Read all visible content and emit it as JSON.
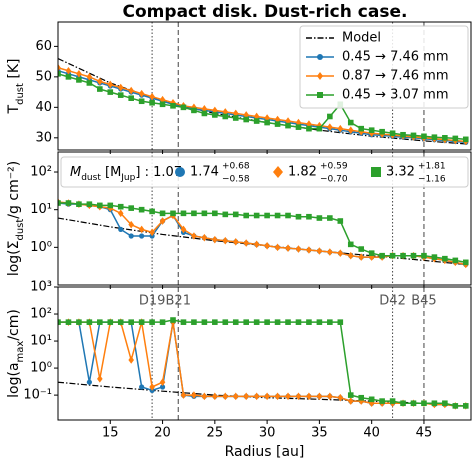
{
  "title": "Compact disk. Dust-rich case.",
  "vlines": [
    {
      "x": 19,
      "label": "D19",
      "style": "dotted"
    },
    {
      "x": 21.5,
      "label": "B21",
      "style": "dashed"
    },
    {
      "x": 42,
      "label": "D42",
      "style": "dotted"
    },
    {
      "x": 45,
      "label": "B45",
      "style": "dashed"
    }
  ],
  "chart_data": [
    {
      "type": "line",
      "ylabel": {
        "main": "T",
        "sub": "dust",
        "rest": " [K]"
      },
      "xlim": [
        10,
        49.5
      ],
      "ylim": [
        26,
        68
      ],
      "yticks": [
        30,
        40,
        50,
        60
      ],
      "log": false,
      "legend": "upper right",
      "x": [
        10,
        11,
        12,
        13,
        14,
        15,
        16,
        17,
        18,
        19,
        20,
        21,
        22,
        23,
        24,
        25,
        26,
        27,
        28,
        29,
        30,
        31,
        32,
        33,
        34,
        35,
        36,
        37,
        38,
        39,
        40,
        41,
        42,
        43,
        44,
        45,
        46,
        47,
        48,
        49
      ],
      "series": [
        {
          "name": "Model",
          "color": "#000000",
          "style": "dashdot",
          "x": [
            10,
            15,
            20,
            25,
            30,
            35,
            40,
            45,
            49
          ],
          "values": [
            56,
            48,
            42,
            38,
            35,
            32.5,
            30.5,
            29,
            28
          ]
        },
        {
          "name": "0.45 → 7.46 mm",
          "color": "#1f77b4",
          "marker": "circle",
          "values": [
            52,
            51,
            50,
            49,
            48,
            47,
            46,
            45,
            44,
            43,
            42,
            41,
            40,
            39.5,
            39,
            38.5,
            38,
            37.5,
            37,
            36.5,
            36,
            35.5,
            35,
            34.5,
            34,
            33.5,
            33,
            32.5,
            32,
            31.5,
            31,
            30.8,
            30.5,
            30.2,
            30,
            29.7,
            29.4,
            29.1,
            28.8,
            28.5
          ]
        },
        {
          "name": "0.87 → 7.46 mm",
          "color": "#ff7f0e",
          "marker": "diamond",
          "values": [
            53,
            52,
            51,
            50,
            48.5,
            47.5,
            46.5,
            45.5,
            44.5,
            43.5,
            42.5,
            41.5,
            40.5,
            40,
            39.5,
            39,
            38.5,
            38,
            37.5,
            37,
            36.5,
            36,
            35.5,
            35,
            34.5,
            34,
            33.5,
            33,
            32.5,
            32,
            31.5,
            31.2,
            30.9,
            30.6,
            30.3,
            30,
            29.7,
            29.4,
            29.1,
            28.8
          ]
        },
        {
          "name": "0.45 → 3.07 mm",
          "color": "#2ca02c",
          "marker": "square",
          "values": [
            51,
            50,
            49,
            48,
            46,
            45,
            44,
            43,
            42,
            41.5,
            41,
            40.5,
            40,
            39,
            38,
            37.5,
            37,
            36.5,
            36,
            35.5,
            35,
            34.5,
            34,
            33.5,
            33,
            33,
            37,
            41,
            35,
            33,
            32.5,
            32,
            31.5,
            31,
            30.8,
            30.5,
            30.2,
            30,
            29.8,
            29.5
          ]
        }
      ]
    },
    {
      "type": "line",
      "ylabel": {
        "main": "log(Σ",
        "sub": "dust",
        "rest": "/g cm⁻²)"
      },
      "xlim": [
        10,
        49.5
      ],
      "ylim": [
        0.1,
        340
      ],
      "log": true,
      "yticks": [
        {
          "value": 1,
          "label": "10⁰"
        },
        {
          "value": 10,
          "label": "10¹"
        },
        {
          "value": 100,
          "label": "10²"
        }
      ],
      "legend_title": {
        "m": "M",
        "sub": "dust",
        "unit": " [M",
        "unit_sub": "Jup",
        "close": "] : ",
        "value": 1.07
      },
      "x": [
        10,
        11,
        12,
        13,
        14,
        15,
        16,
        17,
        18,
        19,
        20,
        21,
        22,
        23,
        24,
        25,
        26,
        27,
        28,
        29,
        30,
        31,
        32,
        33,
        34,
        35,
        36,
        37,
        38,
        39,
        40,
        41,
        42,
        43,
        44,
        45,
        46,
        47,
        48,
        49
      ],
      "series": [
        {
          "color": "#000000",
          "style": "dashdot",
          "x": [
            10,
            15,
            20,
            25,
            30,
            35,
            40,
            45,
            49
          ],
          "values": [
            6,
            3.5,
            2.2,
            1.5,
            1.1,
            0.8,
            0.6,
            0.45,
            0.35
          ]
        },
        {
          "name": "1.74",
          "upper_err": "+0.68",
          "lower_err": "−0.58",
          "color": "#1f77b4",
          "marker": "circle",
          "values": [
            15,
            14,
            14,
            13,
            12,
            10,
            3,
            2,
            2,
            2,
            5,
            7,
            2.5,
            2,
            1.8,
            1.6,
            1.5,
            1.4,
            1.3,
            1.2,
            1.1,
            1.0,
            0.95,
            0.9,
            0.85,
            0.8,
            0.75,
            0.7,
            0.6,
            0.55,
            0.55,
            0.55,
            0.6,
            0.6,
            0.6,
            0.55,
            0.5,
            0.45,
            0.4,
            0.35
          ]
        },
        {
          "name": "1.82",
          "upper_err": "+0.59",
          "lower_err": "−0.70",
          "color": "#ff7f0e",
          "marker": "diamond",
          "values": [
            16,
            15,
            14,
            13,
            12,
            11,
            8,
            4,
            3,
            2.5,
            5,
            7,
            3,
            2,
            1.8,
            1.6,
            1.5,
            1.4,
            1.3,
            1.2,
            1.1,
            1.0,
            0.95,
            0.9,
            0.85,
            0.8,
            0.75,
            0.7,
            0.6,
            0.55,
            0.55,
            0.55,
            0.6,
            0.6,
            0.6,
            0.55,
            0.5,
            0.45,
            0.4,
            0.35
          ]
        },
        {
          "name": "3.32",
          "upper_err": "+1.81",
          "lower_err": "−1.16",
          "color": "#2ca02c",
          "marker": "square",
          "values": [
            15,
            15,
            14,
            14,
            13,
            13,
            12,
            11,
            10,
            9,
            8,
            8,
            8,
            8,
            8,
            8,
            7.5,
            7.5,
            7,
            7,
            7,
            7,
            7,
            6.5,
            6.5,
            6,
            6,
            5,
            1.2,
            0.9,
            0.7,
            0.6,
            0.6,
            0.6,
            0.6,
            0.6,
            0.55,
            0.5,
            0.45,
            0.4
          ]
        }
      ]
    },
    {
      "type": "line",
      "ylabel": {
        "main": "log(a",
        "sub": "max",
        "rest": "/cm)"
      },
      "xlabel": "Radius [au]",
      "xlim": [
        10,
        49.5
      ],
      "ylim": [
        0.012,
        1000
      ],
      "log": true,
      "xticks": [
        15,
        20,
        25,
        30,
        35,
        40,
        45
      ],
      "yticks": [
        {
          "value": 0.1,
          "label": "10⁻¹"
        },
        {
          "value": 1,
          "label": "10⁰"
        },
        {
          "value": 10,
          "label": "10¹"
        },
        {
          "value": 100,
          "label": "10²"
        },
        {
          "value": 1000,
          "label": "10³"
        }
      ],
      "x": [
        10,
        11,
        12,
        13,
        14,
        15,
        16,
        17,
        18,
        19,
        20,
        21,
        22,
        23,
        24,
        25,
        26,
        27,
        28,
        29,
        30,
        31,
        32,
        33,
        34,
        35,
        36,
        37,
        38,
        39,
        40,
        41,
        42,
        43,
        44,
        45,
        46,
        47,
        48,
        49
      ],
      "series": [
        {
          "color": "#000000",
          "style": "dashdot",
          "x": [
            10,
            15,
            20,
            25,
            30,
            35,
            40,
            45,
            49
          ],
          "values": [
            0.3,
            0.2,
            0.14,
            0.1,
            0.08,
            0.07,
            0.06,
            0.05,
            0.04
          ]
        },
        {
          "color": "#1f77b4",
          "marker": "circle",
          "values": [
            50,
            50,
            50,
            0.3,
            50,
            50,
            50,
            50,
            0.2,
            0.15,
            0.2,
            50,
            0.1,
            0.09,
            0.09,
            0.09,
            0.09,
            0.09,
            0.09,
            0.09,
            0.09,
            0.09,
            0.09,
            0.09,
            0.09,
            0.09,
            0.09,
            0.08,
            0.06,
            0.06,
            0.05,
            0.05,
            0.05,
            0.05,
            0.05,
            0.05,
            0.045,
            0.045,
            0.04,
            0.04
          ]
        },
        {
          "color": "#ff7f0e",
          "marker": "diamond",
          "values": [
            50,
            50,
            50,
            50,
            0.4,
            50,
            50,
            2,
            50,
            0.2,
            0.3,
            50,
            0.1,
            0.1,
            0.09,
            0.09,
            0.09,
            0.09,
            0.09,
            0.09,
            0.09,
            0.09,
            0.09,
            0.09,
            0.09,
            0.09,
            0.09,
            0.08,
            0.06,
            0.06,
            0.05,
            0.05,
            0.05,
            0.05,
            0.05,
            0.05,
            0.045,
            0.045,
            0.04,
            0.04
          ]
        },
        {
          "color": "#2ca02c",
          "marker": "square",
          "values": [
            50,
            50,
            50,
            50,
            50,
            50,
            50,
            50,
            50,
            50,
            50,
            60,
            50,
            50,
            50,
            50,
            50,
            50,
            50,
            50,
            50,
            50,
            50,
            50,
            50,
            50,
            50,
            50,
            0.1,
            0.08,
            0.07,
            0.06,
            0.06,
            0.05,
            0.05,
            0.05,
            0.05,
            0.05,
            0.04,
            0.04
          ]
        }
      ]
    }
  ]
}
